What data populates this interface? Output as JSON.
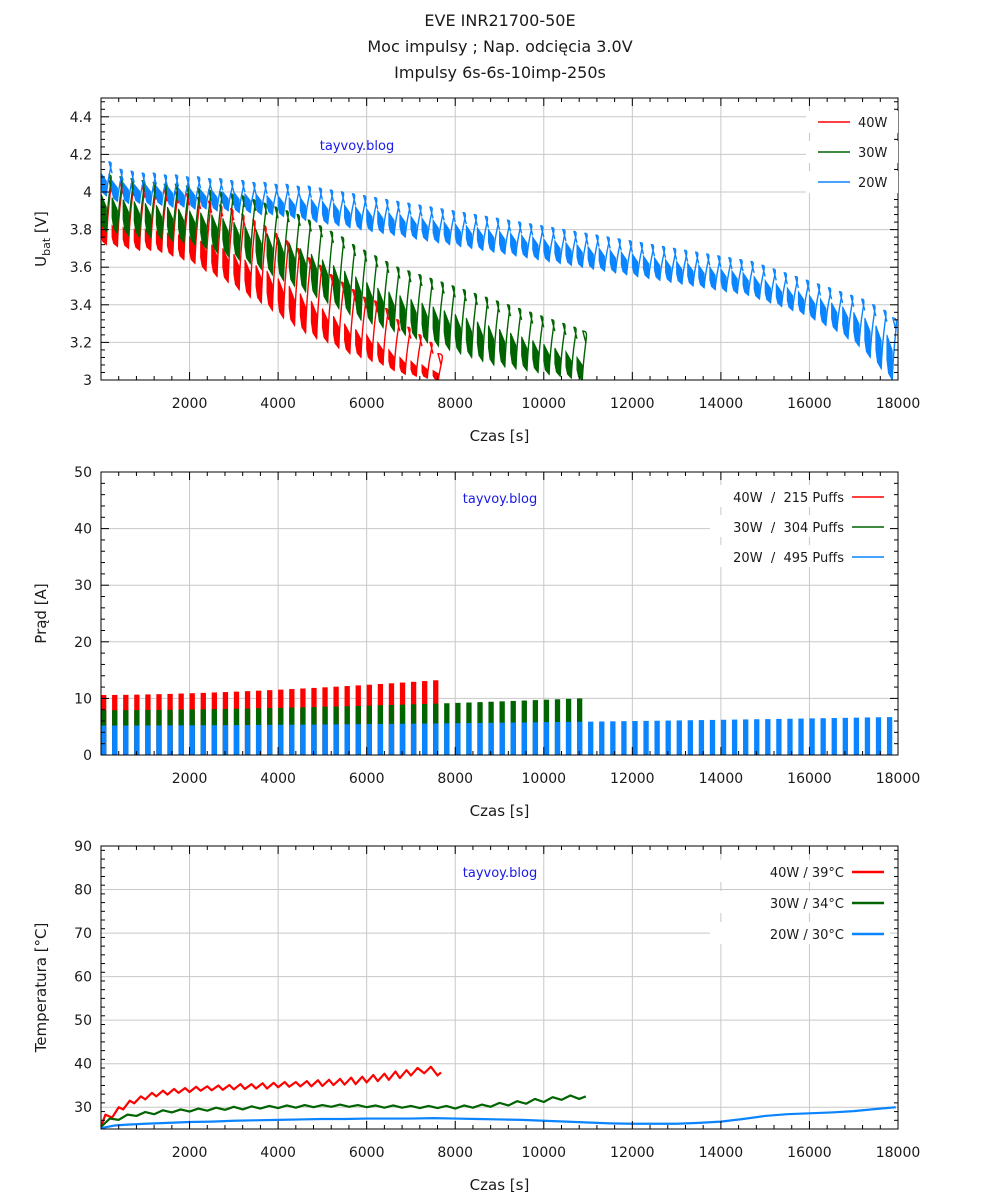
{
  "header": {
    "title_lines": [
      "EVE INR21700-50E",
      "Moc impulsy ; Nap. odcięcia 3.0V",
      "Impulsy 6s-6s-10imp-250s"
    ]
  },
  "colors": {
    "40W": "#ff0000",
    "30W": "#006400",
    "20W": "#0a84ff",
    "watermark": "#1a1ae6",
    "grid": "#c8c8c8"
  },
  "chart_data": [
    {
      "id": "voltage",
      "type": "area",
      "title": "",
      "xlabel": "Czas [s]",
      "ylabel_main": "U",
      "ylabel_sub": "bat",
      "ylabel_suffix": " [V]",
      "xlim": [
        0,
        18000
      ],
      "ylim": [
        3.0,
        4.5
      ],
      "xticks": [
        2000,
        4000,
        6000,
        8000,
        10000,
        12000,
        14000,
        16000,
        18000
      ],
      "xtick_labels": [
        "2000",
        "4000",
        "6000",
        "8000",
        "10000",
        "12000",
        "14000",
        "16000",
        "18000"
      ],
      "yticks": [
        3.0,
        3.2,
        3.4,
        3.6,
        3.8,
        4.0,
        4.2,
        4.4
      ],
      "ytick_labels": [
        "3",
        "3.2",
        "3.4",
        "3.6",
        "3.8",
        "4",
        "4.2",
        "4.4"
      ],
      "grid": true,
      "legend_position": "top-right",
      "watermark": "tayvoy.blog",
      "cycle_period_s": 250,
      "series": [
        {
          "name": "40W",
          "legend": "40W",
          "end_time": 7680,
          "rest_top": [
            4.06,
            4.05,
            4.04,
            4.03,
            4.02,
            4.01,
            4.0,
            3.99,
            3.97,
            3.95,
            3.93,
            3.91,
            3.88,
            3.85,
            3.82,
            3.78,
            3.74,
            3.7,
            3.65,
            3.61,
            3.56,
            3.52,
            3.48,
            3.44,
            3.42,
            3.38,
            3.32,
            3.28,
            3.24,
            3.2,
            3.14
          ],
          "pulse_high": [
            3.84,
            3.82,
            3.81,
            3.8,
            3.8,
            3.79,
            3.78,
            3.77,
            3.76,
            3.74,
            3.72,
            3.7,
            3.67,
            3.64,
            3.61,
            3.58,
            3.54,
            3.5,
            3.46,
            3.42,
            3.38,
            3.34,
            3.3,
            3.27,
            3.24,
            3.2,
            3.16,
            3.12,
            3.1,
            3.08,
            3.05
          ],
          "pulse_low": [
            3.72,
            3.71,
            3.7,
            3.69,
            3.69,
            3.68,
            3.66,
            3.64,
            3.62,
            3.58,
            3.55,
            3.52,
            3.48,
            3.44,
            3.41,
            3.37,
            3.33,
            3.29,
            3.25,
            3.22,
            3.2,
            3.17,
            3.14,
            3.12,
            3.1,
            3.08,
            3.05,
            3.03,
            3.02,
            3.01,
            3.0
          ]
        },
        {
          "name": "30W",
          "legend": "30W",
          "end_time": 10950,
          "rest_top": [
            4.09,
            4.08,
            4.07,
            4.06,
            4.05,
            4.04,
            4.04,
            4.03,
            4.02,
            4.01,
            4.0,
            3.99,
            3.98,
            3.96,
            3.94,
            3.92,
            3.9,
            3.88,
            3.85,
            3.82,
            3.79,
            3.76,
            3.72,
            3.69,
            3.66,
            3.63,
            3.6,
            3.58,
            3.56,
            3.54,
            3.52,
            3.5,
            3.48,
            3.46,
            3.44,
            3.42,
            3.4,
            3.38,
            3.36,
            3.34,
            3.32,
            3.3,
            3.28,
            3.26
          ],
          "pulse_high": [
            3.99,
            3.97,
            3.96,
            3.95,
            3.94,
            3.93,
            3.92,
            3.91,
            3.9,
            3.89,
            3.88,
            3.86,
            3.84,
            3.82,
            3.8,
            3.78,
            3.76,
            3.73,
            3.7,
            3.67,
            3.64,
            3.61,
            3.58,
            3.55,
            3.52,
            3.49,
            3.47,
            3.45,
            3.43,
            3.41,
            3.39,
            3.37,
            3.35,
            3.33,
            3.31,
            3.29,
            3.27,
            3.25,
            3.23,
            3.21,
            3.19,
            3.17,
            3.15,
            3.12
          ],
          "pulse_low": [
            3.79,
            3.78,
            3.77,
            3.76,
            3.76,
            3.75,
            3.74,
            3.73,
            3.72,
            3.7,
            3.68,
            3.66,
            3.64,
            3.62,
            3.59,
            3.56,
            3.53,
            3.5,
            3.47,
            3.44,
            3.41,
            3.38,
            3.35,
            3.32,
            3.3,
            3.28,
            3.26,
            3.24,
            3.22,
            3.2,
            3.18,
            3.16,
            3.14,
            3.12,
            3.1,
            3.08,
            3.07,
            3.06,
            3.05,
            3.04,
            3.03,
            3.02,
            3.01,
            3.0
          ]
        },
        {
          "name": "20W",
          "legend": "20W",
          "end_time": 17950,
          "rest_top": [
            4.16,
            4.12,
            4.11,
            4.1,
            4.1,
            4.09,
            4.09,
            4.08,
            4.08,
            4.07,
            4.07,
            4.06,
            4.06,
            4.05,
            4.05,
            4.04,
            4.04,
            4.03,
            4.03,
            4.02,
            4.01,
            4.0,
            3.99,
            3.98,
            3.97,
            3.96,
            3.95,
            3.94,
            3.93,
            3.92,
            3.91,
            3.9,
            3.89,
            3.88,
            3.87,
            3.86,
            3.85,
            3.84,
            3.83,
            3.82,
            3.81,
            3.8,
            3.79,
            3.78,
            3.77,
            3.76,
            3.75,
            3.74,
            3.73,
            3.72,
            3.71,
            3.7,
            3.69,
            3.68,
            3.67,
            3.66,
            3.65,
            3.64,
            3.63,
            3.61,
            3.59,
            3.57,
            3.55,
            3.53,
            3.51,
            3.49,
            3.47,
            3.45,
            3.43,
            3.4,
            3.37,
            3.33
          ],
          "pulse_high": [
            4.1,
            4.06,
            4.05,
            4.04,
            4.04,
            4.03,
            4.03,
            4.02,
            4.02,
            4.01,
            4.01,
            4.0,
            4.0,
            3.99,
            3.99,
            3.98,
            3.98,
            3.97,
            3.97,
            3.96,
            3.95,
            3.94,
            3.93,
            3.92,
            3.91,
            3.9,
            3.89,
            3.88,
            3.87,
            3.86,
            3.85,
            3.84,
            3.83,
            3.82,
            3.81,
            3.8,
            3.79,
            3.78,
            3.77,
            3.76,
            3.75,
            3.74,
            3.73,
            3.72,
            3.71,
            3.7,
            3.69,
            3.68,
            3.67,
            3.66,
            3.65,
            3.64,
            3.63,
            3.62,
            3.61,
            3.6,
            3.59,
            3.58,
            3.57,
            3.55,
            3.53,
            3.51,
            3.49,
            3.47,
            3.45,
            3.43,
            3.41,
            3.39,
            3.36,
            3.33,
            3.29,
            3.24
          ],
          "pulse_low": [
            3.98,
            3.95,
            3.94,
            3.94,
            3.93,
            3.93,
            3.92,
            3.92,
            3.91,
            3.91,
            3.9,
            3.9,
            3.89,
            3.89,
            3.88,
            3.88,
            3.87,
            3.86,
            3.85,
            3.84,
            3.83,
            3.82,
            3.81,
            3.8,
            3.79,
            3.78,
            3.77,
            3.76,
            3.75,
            3.74,
            3.73,
            3.72,
            3.71,
            3.7,
            3.69,
            3.68,
            3.67,
            3.66,
            3.65,
            3.64,
            3.63,
            3.62,
            3.61,
            3.6,
            3.59,
            3.58,
            3.57,
            3.56,
            3.55,
            3.54,
            3.53,
            3.52,
            3.51,
            3.5,
            3.49,
            3.48,
            3.47,
            3.46,
            3.45,
            3.43,
            3.41,
            3.39,
            3.37,
            3.35,
            3.32,
            3.29,
            3.26,
            3.22,
            3.18,
            3.12,
            3.06,
            3.0
          ]
        }
      ]
    },
    {
      "id": "current",
      "type": "bar",
      "title": "",
      "xlabel": "Czas [s]",
      "ylabel": "Prąd [A]",
      "xlim": [
        0,
        18000
      ],
      "ylim": [
        0,
        50
      ],
      "xticks": [
        2000,
        4000,
        6000,
        8000,
        10000,
        12000,
        14000,
        16000,
        18000
      ],
      "xtick_labels": [
        "2000",
        "4000",
        "6000",
        "8000",
        "10000",
        "12000",
        "14000",
        "16000",
        "18000"
      ],
      "yticks": [
        0,
        10,
        20,
        30,
        40,
        50
      ],
      "ytick_labels": [
        "0",
        "10",
        "20",
        "30",
        "40",
        "50"
      ],
      "grid": true,
      "legend_position": "top-right",
      "watermark": "tayvoy.blog",
      "cycle_period_s": 250,
      "series": [
        {
          "name": "40W",
          "legend": "40W  /  215 Puffs",
          "end_time": 7680,
          "start_current": 10.6,
          "end_current": 13.2
        },
        {
          "name": "30W",
          "legend": "30W  /  304 Puffs",
          "end_time": 10950,
          "start_current": 7.9,
          "end_current": 10.0
        },
        {
          "name": "20W",
          "legend": "20W  /  495 Puffs",
          "end_time": 17950,
          "start_current": 5.2,
          "end_current": 6.7
        }
      ]
    },
    {
      "id": "temperature",
      "type": "line",
      "title": "",
      "xlabel": "Czas [s]",
      "ylabel": "Temperatura [°C]",
      "xlim": [
        0,
        18000
      ],
      "ylim": [
        25,
        90
      ],
      "xticks": [
        2000,
        4000,
        6000,
        8000,
        10000,
        12000,
        14000,
        16000,
        18000
      ],
      "xtick_labels": [
        "2000",
        "4000",
        "6000",
        "8000",
        "10000",
        "12000",
        "14000",
        "16000",
        "18000"
      ],
      "yticks": [
        30,
        40,
        50,
        60,
        70,
        80,
        90
      ],
      "ytick_labels": [
        "30",
        "40",
        "50",
        "60",
        "70",
        "80",
        "90"
      ],
      "grid": true,
      "legend_position": "top-right",
      "watermark": "tayvoy.blog",
      "series": [
        {
          "name": "40W",
          "legend": "40W / 39°C",
          "x": [
            0,
            100,
            250,
            400,
            500,
            650,
            750,
            900,
            1000,
            1150,
            1250,
            1400,
            1500,
            1650,
            1750,
            1900,
            2000,
            2150,
            2250,
            2400,
            2500,
            2650,
            2750,
            2900,
            3000,
            3150,
            3250,
            3400,
            3500,
            3650,
            3750,
            3900,
            4000,
            4150,
            4250,
            4400,
            4500,
            4650,
            4750,
            4900,
            5000,
            5150,
            5250,
            5400,
            5500,
            5650,
            5750,
            5900,
            6000,
            6150,
            6250,
            6400,
            6500,
            6650,
            6750,
            6900,
            7000,
            7150,
            7300,
            7450,
            7600,
            7680
          ],
          "y": [
            25.5,
            28.3,
            27.6,
            30.0,
            29.5,
            31.5,
            30.9,
            32.5,
            31.8,
            33.3,
            32.5,
            33.8,
            32.9,
            34.2,
            33.3,
            34.4,
            33.5,
            34.7,
            33.8,
            34.8,
            33.9,
            35.0,
            34.0,
            35.1,
            34.1,
            35.3,
            34.2,
            35.3,
            34.3,
            35.5,
            34.3,
            35.6,
            34.6,
            35.8,
            34.7,
            35.8,
            34.8,
            36.0,
            34.8,
            36.2,
            34.9,
            36.3,
            35.1,
            36.5,
            35.2,
            36.8,
            35.3,
            37.0,
            35.7,
            37.4,
            36.0,
            37.7,
            36.3,
            38.2,
            36.7,
            38.5,
            37.3,
            39.0,
            37.8,
            39.3,
            37.3,
            38.0
          ]
        },
        {
          "name": "30W",
          "legend": "30W / 34°C",
          "x": [
            0,
            200,
            400,
            600,
            800,
            1000,
            1200,
            1400,
            1600,
            1800,
            2000,
            2200,
            2400,
            2600,
            2800,
            3000,
            3200,
            3400,
            3600,
            3800,
            4000,
            4200,
            4400,
            4600,
            4800,
            5000,
            5200,
            5400,
            5600,
            5800,
            6000,
            6200,
            6400,
            6600,
            6800,
            7000,
            7200,
            7400,
            7600,
            7800,
            8000,
            8200,
            8400,
            8600,
            8800,
            9000,
            9200,
            9400,
            9600,
            9800,
            10000,
            10200,
            10400,
            10600,
            10800,
            10950
          ],
          "y": [
            25.5,
            27.4,
            27.1,
            28.3,
            28.0,
            28.9,
            28.4,
            29.3,
            28.8,
            29.5,
            29.0,
            29.7,
            29.2,
            29.9,
            29.4,
            30.1,
            29.5,
            30.2,
            29.7,
            30.3,
            29.8,
            30.4,
            29.9,
            30.5,
            30.0,
            30.5,
            30.1,
            30.6,
            30.1,
            30.5,
            30.0,
            30.4,
            29.9,
            30.4,
            29.9,
            30.3,
            29.8,
            30.3,
            29.8,
            30.3,
            29.7,
            30.4,
            29.9,
            30.6,
            30.1,
            31.0,
            30.4,
            31.4,
            30.8,
            31.9,
            31.2,
            32.3,
            31.7,
            32.7,
            31.9,
            32.5
          ]
        },
        {
          "name": "20W",
          "legend": "20W / 30°C",
          "x": [
            0,
            300,
            600,
            1000,
            1500,
            2000,
            2500,
            3000,
            3500,
            4000,
            4500,
            5000,
            5500,
            6000,
            6500,
            7000,
            7500,
            8000,
            8500,
            9000,
            9500,
            10000,
            10500,
            11000,
            11500,
            12000,
            12500,
            13000,
            13500,
            14000,
            14500,
            15000,
            15500,
            16000,
            16500,
            17000,
            17500,
            17950
          ],
          "y": [
            25.2,
            25.8,
            26.0,
            26.2,
            26.4,
            26.6,
            26.7,
            26.9,
            27.0,
            27.1,
            27.2,
            27.3,
            27.3,
            27.4,
            27.4,
            27.4,
            27.5,
            27.4,
            27.3,
            27.2,
            27.1,
            26.9,
            26.7,
            26.5,
            26.3,
            26.2,
            26.2,
            26.2,
            26.4,
            26.7,
            27.3,
            28.0,
            28.4,
            28.6,
            28.8,
            29.1,
            29.6,
            30.0
          ]
        }
      ]
    }
  ]
}
